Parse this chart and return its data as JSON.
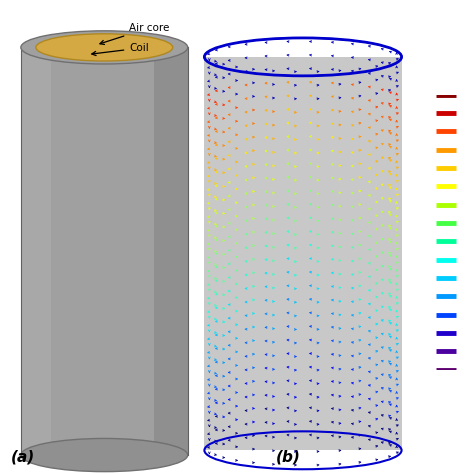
{
  "fig_width": 4.74,
  "fig_height": 4.74,
  "fig_dpi": 100,
  "bg_color": "#ffffff",
  "panel_a": {
    "label": "(a)",
    "cylinder_color_light": "#b0b0b0",
    "cylinder_color_main": "#a0a0a0",
    "cylinder_color_dark": "#888888",
    "aircore_color": "#d4a843",
    "aircore_edge_color": "#b08820",
    "annotation_aircore": "Air core",
    "annotation_coil": "Coil",
    "text_color": "#000000"
  },
  "panel_b": {
    "label": "(b)",
    "bg_color": "#c8c8c8",
    "n_turns": 30,
    "n_cols": 26,
    "colorbar_colors": [
      "#5e0070",
      "#4b00a0",
      "#2200cc",
      "#0044ff",
      "#0099ff",
      "#00ccff",
      "#00ffee",
      "#00ff99",
      "#44ff44",
      "#aaff00",
      "#ffff00",
      "#ffcc00",
      "#ff9900",
      "#ff4400",
      "#cc0000",
      "#880000"
    ],
    "colorbar_line_colors": [
      "#880000",
      "#cc0000",
      "#ff4400",
      "#ff9900",
      "#ffcc00",
      "#ffff00",
      "#aaff00",
      "#44ff44",
      "#00ff99",
      "#00ffee",
      "#00ccff",
      "#0099ff",
      "#0044ff",
      "#2200cc",
      "#4b00a0",
      "#5e0070"
    ]
  }
}
